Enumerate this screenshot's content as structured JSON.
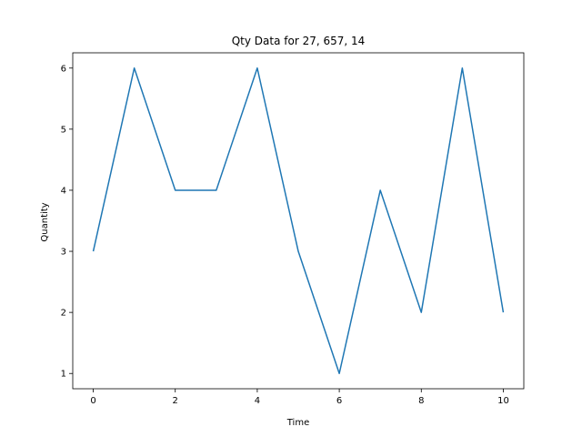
{
  "chart_data": {
    "type": "line",
    "title": "Qty Data for 27, 657, 14",
    "xlabel": "Time",
    "ylabel": "Quantity",
    "x": [
      0,
      1,
      2,
      3,
      4,
      5,
      6,
      7,
      8,
      9,
      10
    ],
    "series": [
      {
        "values": [
          3,
          6,
          4,
          4,
          6,
          3,
          1,
          4,
          2,
          6,
          2
        ],
        "color": "#1f77b4"
      }
    ],
    "xlim": [
      -0.5,
      10.5
    ],
    "ylim": [
      0.75,
      6.25
    ],
    "xticks": [
      0,
      2,
      4,
      6,
      8,
      10
    ],
    "yticks": [
      1,
      2,
      3,
      4,
      5,
      6
    ],
    "grid": false,
    "legend": "none"
  }
}
